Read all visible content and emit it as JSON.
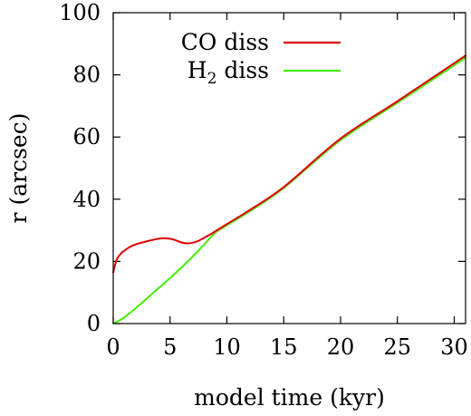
{
  "chart_data": {
    "type": "line",
    "title": "",
    "xlabel": "model time (kyr)",
    "ylabel": "r (arcsec)",
    "xlim": [
      0,
      31
    ],
    "ylim": [
      0,
      100
    ],
    "xticks": [
      0,
      5,
      10,
      15,
      20,
      25,
      30
    ],
    "yticks": [
      0,
      20,
      40,
      60,
      80,
      100
    ],
    "grid": false,
    "legend_position": "top-right",
    "series": [
      {
        "name": "CO diss",
        "legend_text": "CO diss",
        "color": "#e00000",
        "x": [
          0,
          0.3,
          0.7,
          1,
          1.5,
          2,
          3,
          4,
          4.5,
          5,
          5.5,
          6,
          6.5,
          7,
          7.5,
          8,
          8.5,
          9,
          10,
          12,
          15,
          20,
          25,
          31
        ],
        "y": [
          16.5,
          20.5,
          22.6,
          23.5,
          24.7,
          25.5,
          26.5,
          27.3,
          27.4,
          27.3,
          26.8,
          26.1,
          25.8,
          26.0,
          26.6,
          27.6,
          28.6,
          29.7,
          32.0,
          36.5,
          43.9,
          59.5,
          71.5,
          86.2
        ]
      },
      {
        "name": "H2 diss",
        "legend_text": "H",
        "legend_subscript": "2",
        "legend_suffix": " diss",
        "color": "#44ee00",
        "x": [
          0,
          0.5,
          1,
          1.5,
          2,
          3,
          4,
          5,
          6,
          7,
          8,
          9,
          10,
          12,
          15,
          20,
          25,
          31
        ],
        "y": [
          0,
          0.9,
          2.0,
          3.5,
          5.0,
          8.2,
          11.4,
          14.6,
          18.0,
          21.6,
          25.4,
          29.3,
          31.6,
          36.1,
          43.6,
          59.0,
          71.0,
          85.5
        ]
      }
    ]
  }
}
